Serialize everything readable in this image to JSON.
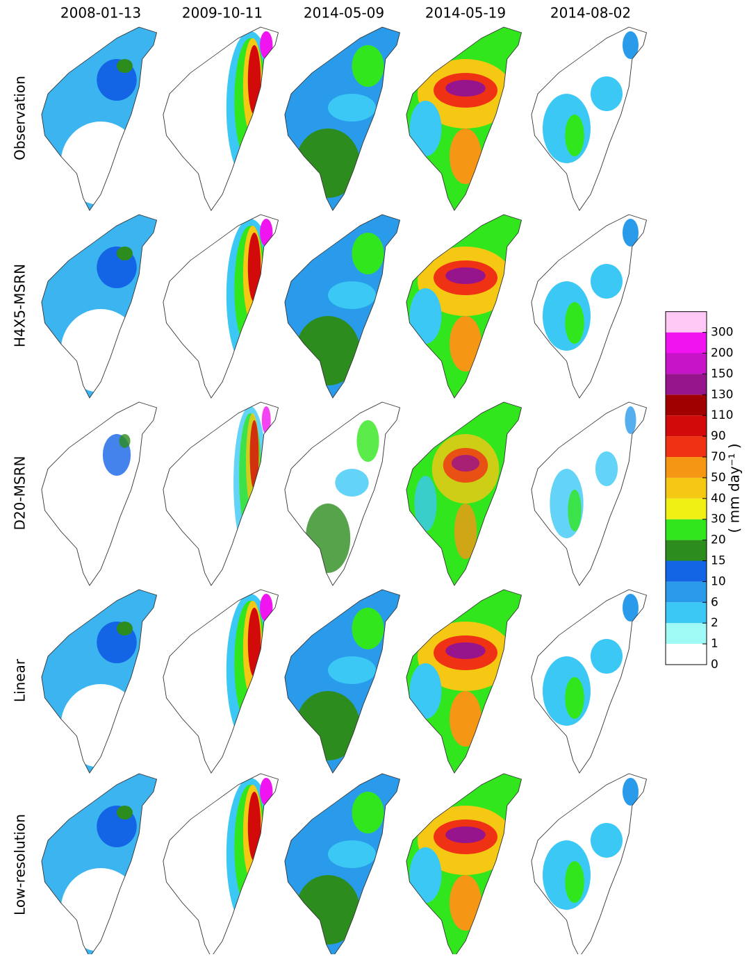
{
  "column_titles": [
    "2008-01-13",
    "2009-10-11",
    "2014-05-09",
    "2014-05-19",
    "2014-08-02"
  ],
  "row_labels": [
    "Observation",
    "H4X5-MSRN",
    "D20-MSRN",
    "Linear",
    "Low-resolution"
  ],
  "colorbar": {
    "label": "( mm day⁻¹ )",
    "ticks": [
      0,
      1,
      2,
      6,
      10,
      15,
      20,
      30,
      40,
      50,
      70,
      90,
      110,
      130,
      150,
      200,
      300
    ],
    "colors": [
      "#ffffff",
      "#9ffaf5",
      "#3cc8f5",
      "#2a9bea",
      "#1464e6",
      "#2d8c1e",
      "#32e61e",
      "#f0f014",
      "#f5c814",
      "#f59614",
      "#f03214",
      "#d20a0a",
      "#a00000",
      "#96148c",
      "#c814c8",
      "#f014f0",
      "#ffc8f5"
    ]
  }
}
